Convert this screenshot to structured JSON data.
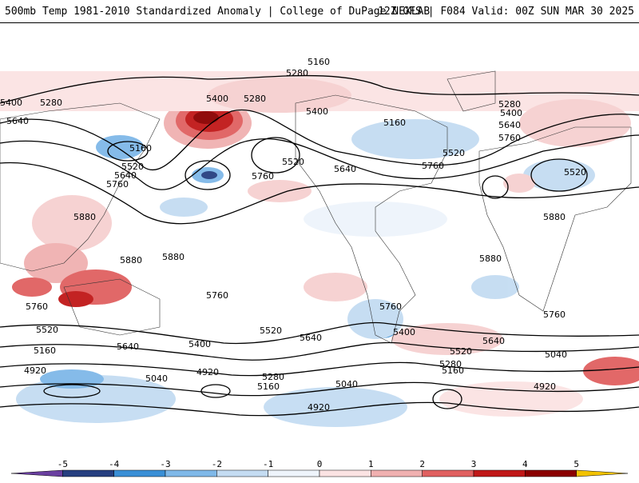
{
  "header": {
    "left": "500mb Temp 1981-2010 Standardized Anomaly | College of DuPage NEXLAB",
    "right": "12Z GFS | F084 Valid: 00Z SUN MAR 30 2025"
  },
  "colorbar": {
    "ticks": [
      "-5",
      "-4",
      "-3",
      "-2",
      "-1",
      "0",
      "1",
      "2",
      "3",
      "4",
      "5"
    ],
    "colors": [
      "#6a3fa0",
      "#263f80",
      "#3a8fd6",
      "#7fb8e8",
      "#c4dcf2",
      "#eef4fb",
      "#fbe3e3",
      "#f0b0b0",
      "#e06060",
      "#c01818",
      "#8b0000",
      "#f2c200"
    ]
  },
  "contour_labels": [
    "5160",
    "5280",
    "5400",
    "5280",
    "5640",
    "5160",
    "5520",
    "5640",
    "5760",
    "5400",
    "5280",
    "5760",
    "5520",
    "5400",
    "5160",
    "5640",
    "5520",
    "5760",
    "5280",
    "5400",
    "5640",
    "5760",
    "5520",
    "5880",
    "5880",
    "5880",
    "5880",
    "5880",
    "5760",
    "5760",
    "5760",
    "5760",
    "5520",
    "5640",
    "5400",
    "5520",
    "5640",
    "5160",
    "5400",
    "5640",
    "5520",
    "5280",
    "5160",
    "5040",
    "4920",
    "5040",
    "4920",
    "5280",
    "5160",
    "5040",
    "4920",
    "4920"
  ]
}
